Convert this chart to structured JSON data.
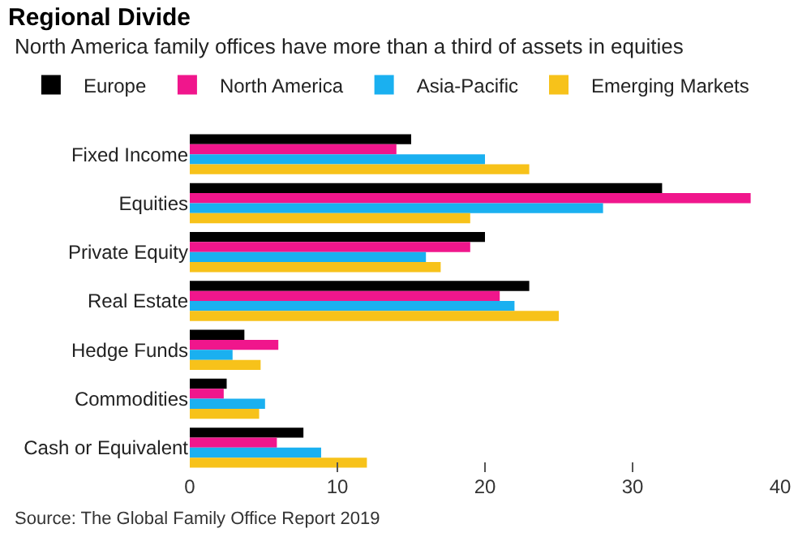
{
  "chart_data": {
    "type": "bar",
    "orientation": "horizontal",
    "title": "Regional Divide",
    "subtitle": "North America family offices have more than a third of assets in equities",
    "categories": [
      "Fixed Income",
      "Equities",
      "Private Equity",
      "Real Estate",
      "Hedge Funds",
      "Commodities",
      "Cash or Equivalent"
    ],
    "series": [
      {
        "name": "Europe",
        "color": "#000000",
        "values": [
          15,
          32,
          20,
          23,
          3.7,
          2.5,
          7.7
        ]
      },
      {
        "name": "North America",
        "color": "#f0168c",
        "values": [
          14,
          38,
          19,
          21,
          6,
          2.3,
          5.9
        ]
      },
      {
        "name": "Asia-Pacific",
        "color": "#1ab0f0",
        "values": [
          20,
          28,
          16,
          22,
          2.9,
          5.1,
          8.9
        ]
      },
      {
        "name": "Emerging Markets",
        "color": "#f7c21a",
        "values": [
          23,
          19,
          17,
          25,
          4.8,
          4.7,
          12
        ]
      }
    ],
    "xlim": [
      0,
      40
    ],
    "xticks": [
      0,
      10,
      20,
      30,
      40
    ],
    "legend": "top left",
    "annotations": [
      "Source: The Global Family Office Report 2019"
    ]
  }
}
